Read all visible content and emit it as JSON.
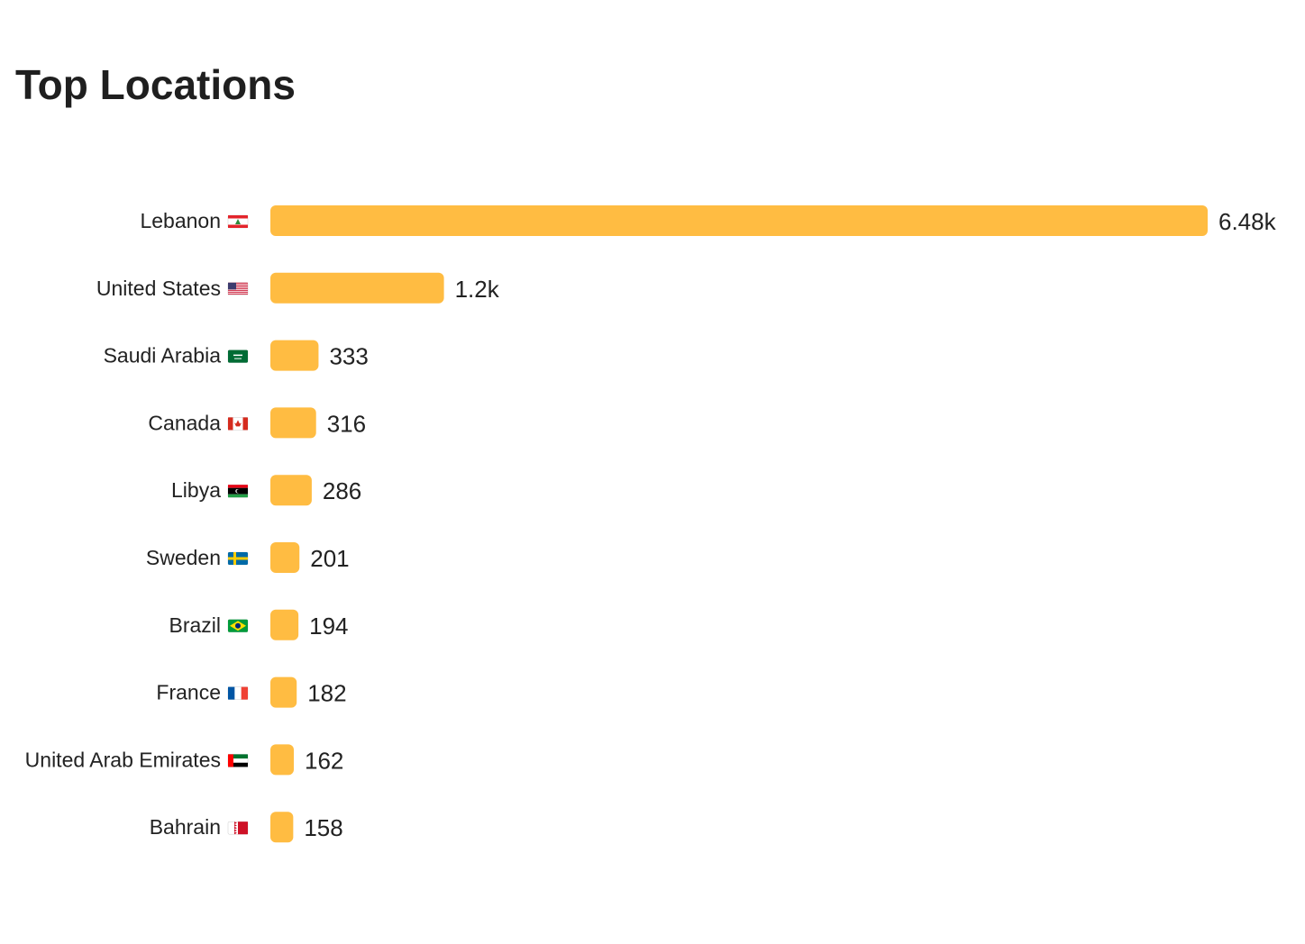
{
  "header": {
    "title": "Top Locations"
  },
  "colors": {
    "bar": "#FFBC42",
    "text": "#222222"
  },
  "chart_data": {
    "type": "bar",
    "orientation": "horizontal",
    "title": "Top Locations",
    "grid": false,
    "legend": "none",
    "categories": [
      "Lebanon",
      "United States",
      "Saudi Arabia",
      "Canada",
      "Libya",
      "Sweden",
      "Brazil",
      "France",
      "United Arab Emirates",
      "Bahrain"
    ],
    "flags": [
      "flag-lebanon-icon",
      "flag-united-states-icon",
      "flag-saudi-arabia-icon",
      "flag-canada-icon",
      "flag-libya-icon",
      "flag-sweden-icon",
      "flag-brazil-icon",
      "flag-france-icon",
      "flag-uae-icon",
      "flag-bahrain-icon"
    ],
    "values": [
      6480,
      1200,
      333,
      316,
      286,
      201,
      194,
      182,
      162,
      158
    ],
    "value_labels": [
      "6.48k",
      "1.2k",
      "333",
      "316",
      "286",
      "201",
      "194",
      "182",
      "162",
      "158"
    ]
  }
}
